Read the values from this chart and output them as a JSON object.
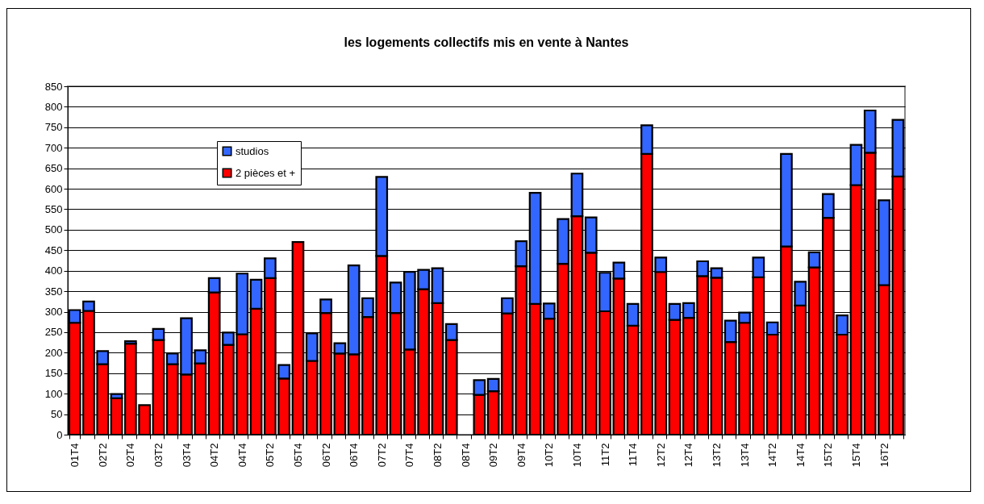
{
  "chart_data": {
    "type": "bar",
    "title": "les logements collectifs mis en vente à Nantes",
    "categories": [
      "01T4",
      null,
      "02T2",
      null,
      "02T4",
      null,
      "03T2",
      null,
      "03T4",
      null,
      "04T2",
      null,
      "04T4",
      null,
      "05T2",
      null,
      "05T4",
      null,
      "06T2",
      null,
      "06T4",
      null,
      "07T2",
      null,
      "07T4",
      null,
      "08T2",
      null,
      "08T4",
      null,
      "09T2",
      null,
      "09T4",
      null,
      "10T2",
      null,
      "10T4",
      null,
      "11T2",
      null,
      "11T4",
      null,
      "12T2",
      null,
      "12T4",
      null,
      "13T2",
      null,
      "13T4",
      null,
      "14T2",
      null,
      "14T4",
      null,
      "15T2",
      null,
      "15T4",
      null,
      "16T2",
      null
    ],
    "series": [
      {
        "name": "2 pièces et +",
        "color": "#ff0000",
        "values": [
          273,
          302,
          172,
          89,
          222,
          72,
          231,
          172,
          147,
          174,
          347,
          219,
          245,
          307,
          382,
          137,
          470,
          180,
          297,
          198,
          196,
          287,
          436,
          297,
          208,
          355,
          321,
          231,
          null,
          97,
          106,
          296,
          411,
          319,
          283,
          417,
          533,
          444,
          301,
          381,
          266,
          685,
          397,
          280,
          285,
          387,
          383,
          226,
          273,
          384,
          244,
          459,
          315,
          408,
          529,
          244,
          609,
          688,
          365,
          630
        ]
      },
      {
        "name": "studios",
        "color": "#3366ff",
        "values": [
          31,
          23,
          32,
          10,
          6,
          null,
          27,
          26,
          137,
          32,
          35,
          30,
          148,
          71,
          48,
          33,
          null,
          67,
          33,
          25,
          217,
          46,
          193,
          74,
          189,
          47,
          85,
          39,
          null,
          36,
          30,
          37,
          61,
          271,
          37,
          109,
          104,
          86,
          94,
          39,
          53,
          70,
          35,
          39,
          36,
          36,
          23,
          52,
          25,
          48,
          30,
          226,
          58,
          37,
          58,
          47,
          98,
          103,
          207,
          138
        ]
      }
    ],
    "stacked": true,
    "ylim": [
      0,
      850
    ],
    "yticks": [
      0,
      50,
      100,
      150,
      200,
      250,
      300,
      350,
      400,
      450,
      500,
      550,
      600,
      650,
      700,
      750,
      800,
      850
    ],
    "grid": "y",
    "legend": "top left"
  }
}
